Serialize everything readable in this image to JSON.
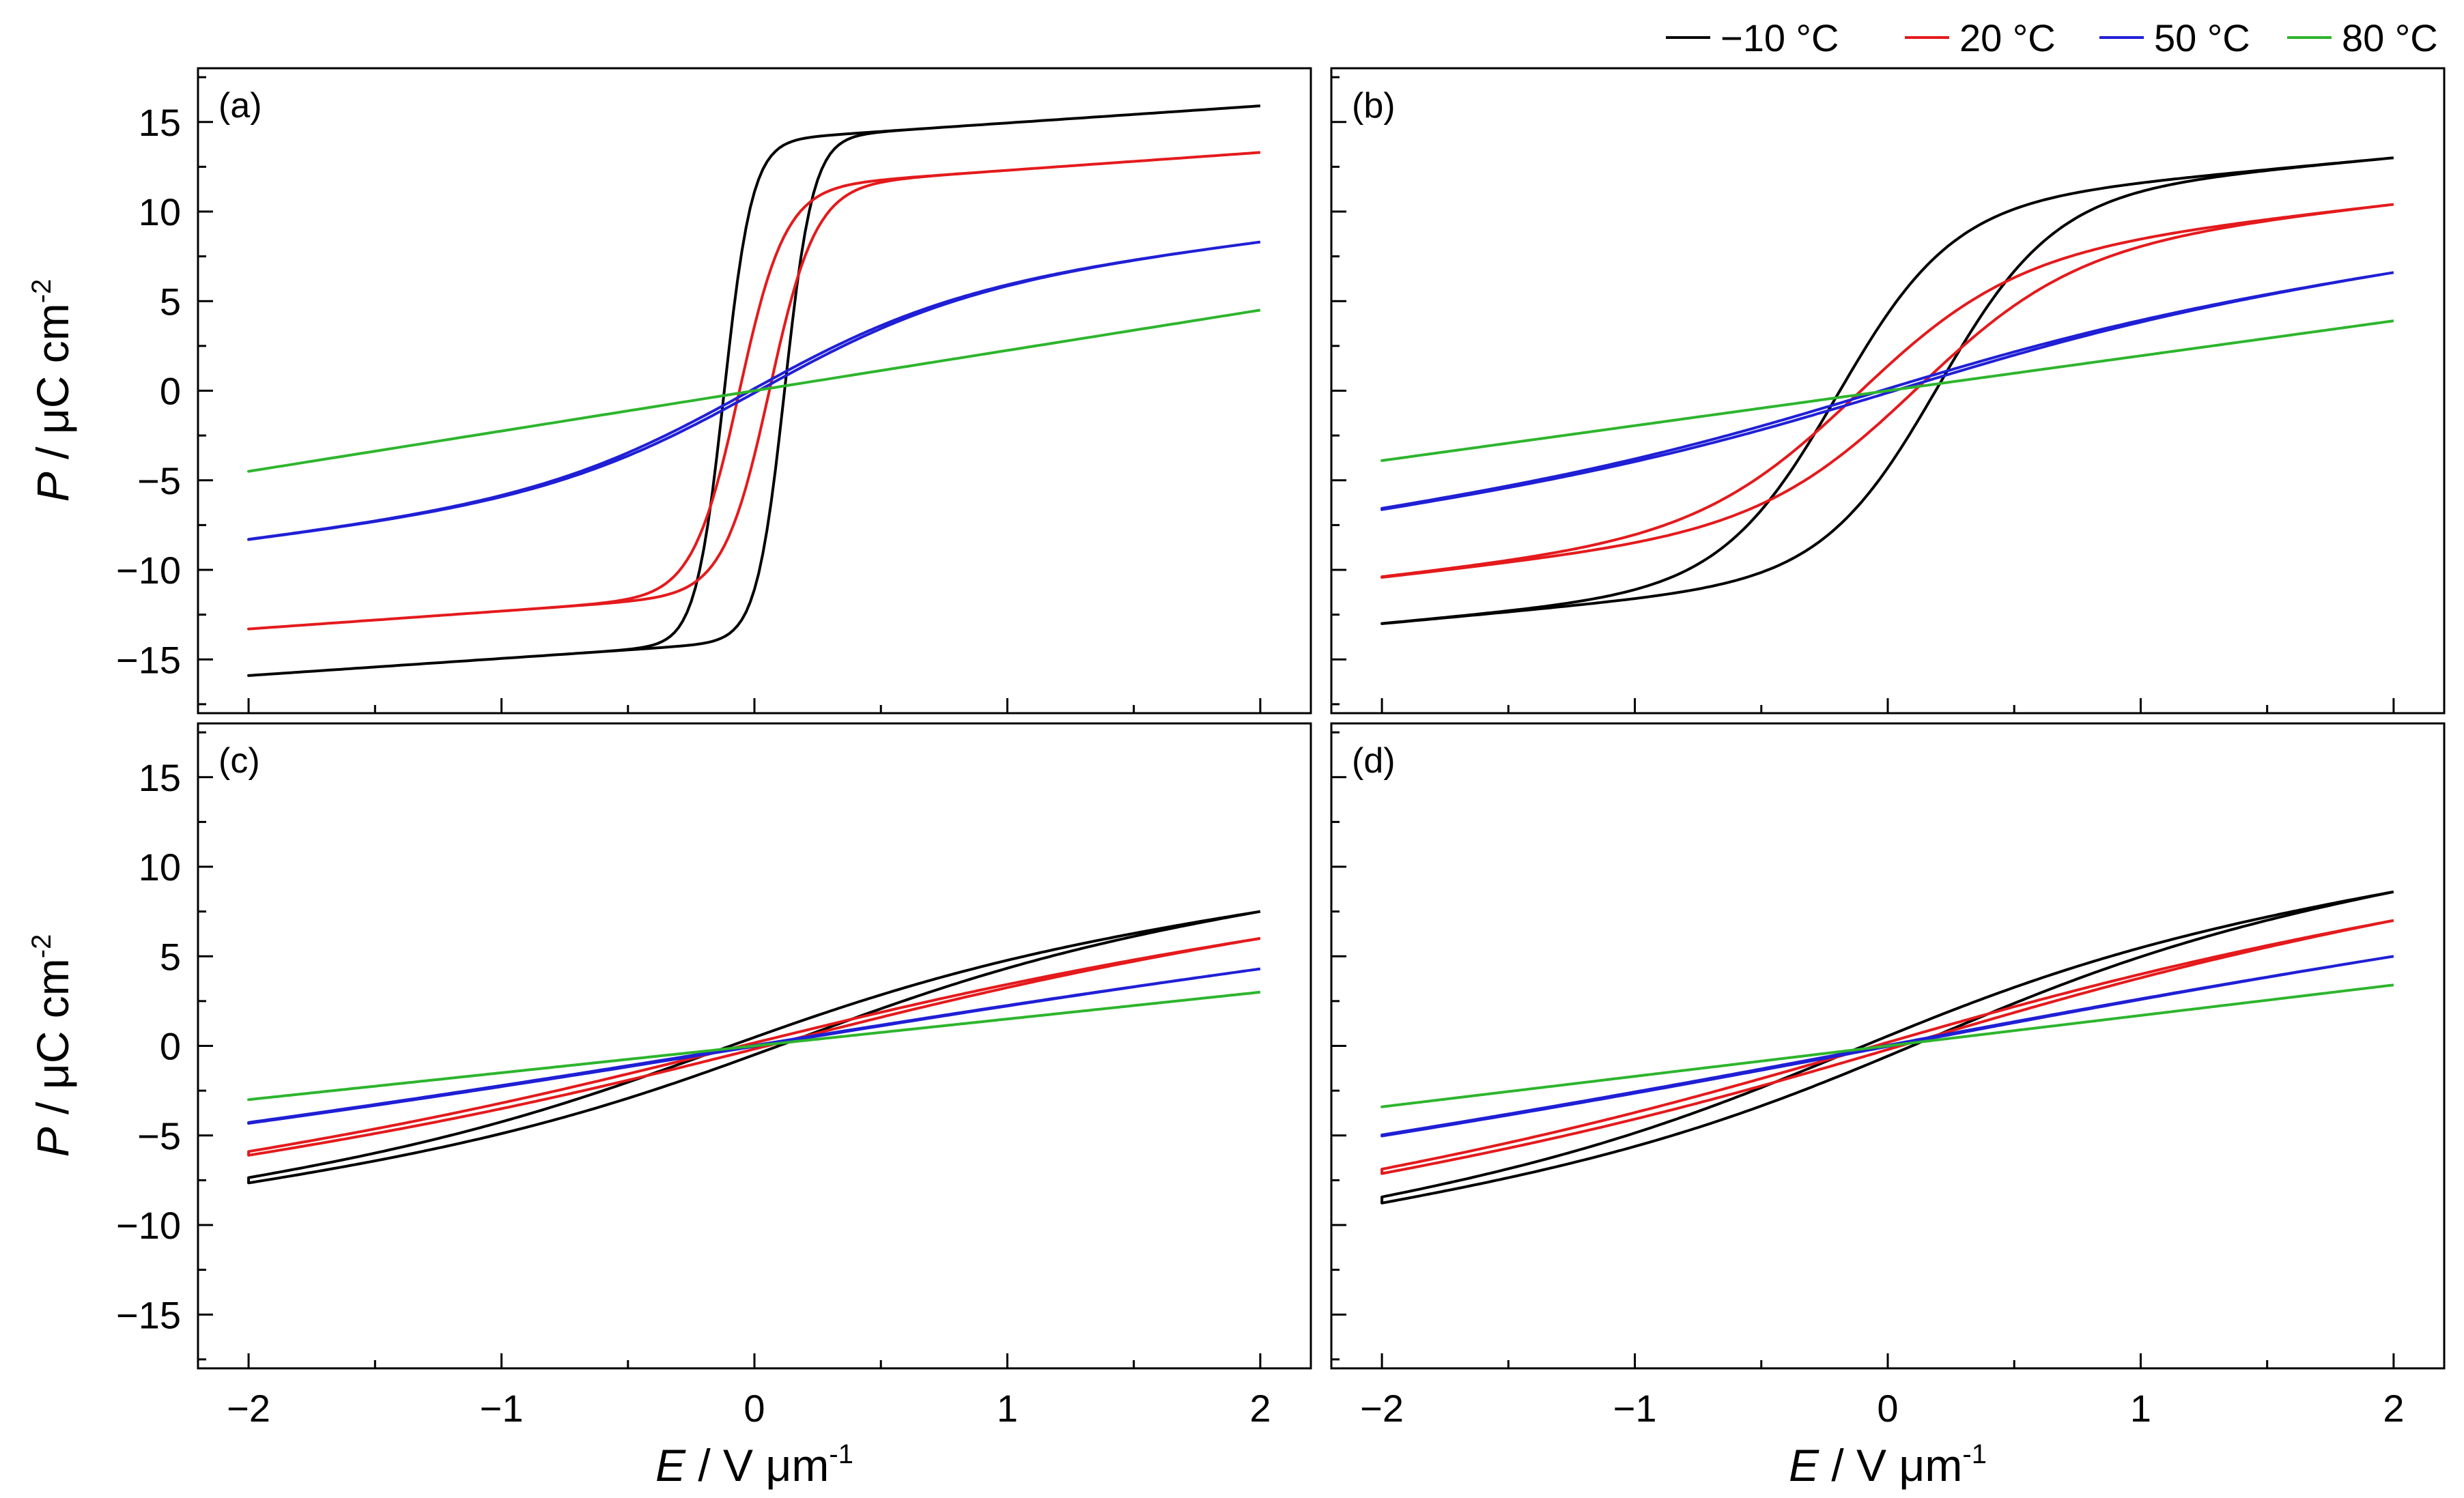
{
  "chart_data": {
    "type": "line",
    "panels": [
      {
        "label": "(a)",
        "loops": [
          {
            "series": "−10 °C",
            "color": "#000000",
            "Pmax": 15.9,
            "Pr": 10.0,
            "Ec": 0.12,
            "sharp": 9.0,
            "lin": 0.12
          },
          {
            "series": "20 °C",
            "color": "#e41a1c",
            "Pmax": 13.3,
            "Pr": 6.5,
            "Ec": 0.06,
            "sharp": 5.5,
            "lin": 0.15
          },
          {
            "series": "50 °C",
            "color": "#1f1fd6",
            "Pmax": 8.3,
            "Pr": 0.5,
            "Ec": 0.02,
            "sharp": 1.2,
            "lin": 0.4
          },
          {
            "series": "80 °C",
            "color": "#2db52d",
            "Pmax": 4.5,
            "Pr": 0.2,
            "Ec": 0.01,
            "sharp": 0.4,
            "lin": 1.0
          }
        ]
      },
      {
        "label": "(b)",
        "loops": [
          {
            "series": "−10 °C",
            "color": "#000000",
            "Pmax": 13.0,
            "Pr": 3.8,
            "Ec": 0.2,
            "sharp": 2.2,
            "lin": 0.2
          },
          {
            "series": "20 °C",
            "color": "#e41a1c",
            "Pmax": 10.4,
            "Pr": 2.0,
            "Ec": 0.12,
            "sharp": 1.6,
            "lin": 0.3
          },
          {
            "series": "50 °C",
            "color": "#1f1fd6",
            "Pmax": 6.6,
            "Pr": 0.6,
            "Ec": 0.05,
            "sharp": 0.8,
            "lin": 0.6
          },
          {
            "series": "80 °C",
            "color": "#2db52d",
            "Pmax": 3.9,
            "Pr": 0.2,
            "Ec": 0.02,
            "sharp": 0.4,
            "lin": 1.0
          }
        ]
      },
      {
        "label": "(c)",
        "loops": [
          {
            "series": "−10 °C",
            "color": "#000000",
            "Pmax": 7.5,
            "Pr": 1.2,
            "Ec": 0.15,
            "sharp": 0.8,
            "lin": 0.5
          },
          {
            "series": "20 °C",
            "color": "#e41a1c",
            "Pmax": 6.0,
            "Pr": 0.8,
            "Ec": 0.1,
            "sharp": 0.6,
            "lin": 0.6
          },
          {
            "series": "50 °C",
            "color": "#1f1fd6",
            "Pmax": 4.3,
            "Pr": 0.4,
            "Ec": 0.05,
            "sharp": 0.5,
            "lin": 0.8
          },
          {
            "series": "80 °C",
            "color": "#2db52d",
            "Pmax": 3.0,
            "Pr": 0.15,
            "Ec": 0.02,
            "sharp": 0.4,
            "lin": 1.0
          }
        ]
      },
      {
        "label": "(d)",
        "loops": [
          {
            "series": "−10 °C",
            "color": "#000000",
            "Pmax": 8.6,
            "Pr": 1.3,
            "Ec": 0.15,
            "sharp": 0.8,
            "lin": 0.5
          },
          {
            "series": "20 °C",
            "color": "#e41a1c",
            "Pmax": 7.0,
            "Pr": 0.9,
            "Ec": 0.1,
            "sharp": 0.6,
            "lin": 0.6
          },
          {
            "series": "50 °C",
            "color": "#1f1fd6",
            "Pmax": 5.0,
            "Pr": 0.45,
            "Ec": 0.05,
            "sharp": 0.5,
            "lin": 0.8
          },
          {
            "series": "80 °C",
            "color": "#2db52d",
            "Pmax": 3.4,
            "Pr": 0.15,
            "Ec": 0.02,
            "sharp": 0.4,
            "lin": 1.0
          }
        ]
      }
    ],
    "series": [
      {
        "name": "−10 °C",
        "color": "#000000"
      },
      {
        "name": "20 °C",
        "color": "#e41a1c"
      },
      {
        "name": "50 °C",
        "color": "#1f1fd6"
      },
      {
        "name": "80 °C",
        "color": "#2db52d"
      }
    ],
    "xlim": [
      -2.2,
      2.2
    ],
    "ylim": [
      -18,
      18
    ],
    "xticks": [
      -2,
      -1,
      0,
      1,
      2
    ],
    "xtick_labels": [
      "−2",
      "−1",
      "0",
      "1",
      "2"
    ],
    "yticks": [
      -15,
      -10,
      -5,
      0,
      5,
      10,
      15
    ],
    "ytick_labels": [
      "−15",
      "−10",
      "−5",
      "0",
      "5",
      "10",
      "15"
    ],
    "xlabel": {
      "italic": "E",
      "rest": " / V μm",
      "sup": "-1"
    },
    "ylabel": {
      "italic": "P",
      "rest": " / μC cm",
      "sup": "-2"
    },
    "legend_position": "top-right"
  }
}
